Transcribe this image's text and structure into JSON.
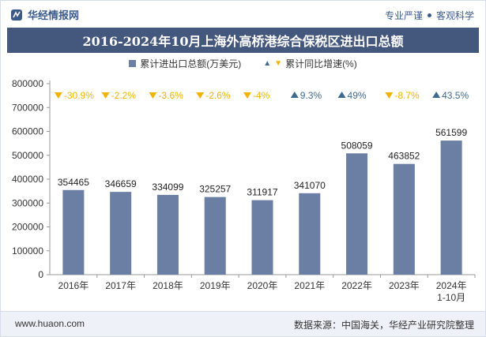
{
  "header": {
    "brand": "华经情报网",
    "tagline_left": "专业严谨",
    "tagline_right": "客观科学"
  },
  "footer": {
    "website": "www.huaon.com",
    "source": "数据来源：中国海关，华经产业研究院整理"
  },
  "colors": {
    "bar": "#6b7ea3",
    "title_bg": "#44577d",
    "up": "#3e6a8f",
    "down": "#f0b400"
  },
  "chart_data": {
    "type": "bar",
    "title": "2016-2024年10月上海外高桥港综合保税区进出口总额",
    "categories": [
      "2016年",
      "2017年",
      "2018年",
      "2019年",
      "2020年",
      "2021年",
      "2022年",
      "2023年",
      "2024年\n1-10月"
    ],
    "series": [
      {
        "name": "累计进出口总额(万美元)",
        "values": [
          354465,
          346659,
          334099,
          325257,
          311917,
          341070,
          508059,
          463852,
          561599
        ]
      },
      {
        "name": "累计同比增速(%)",
        "values": [
          -30.9,
          -2.2,
          -3.6,
          -2.6,
          -4,
          9.3,
          49,
          -8.7,
          43.5
        ],
        "labels": [
          "-30.9%",
          "-2.2%",
          "-3.6%",
          "-2.6%",
          "-4%",
          "9.3%",
          "49%",
          "-8.7%",
          "43.5%"
        ]
      }
    ],
    "ylim": [
      0,
      800000
    ],
    "yticks": [
      "0",
      "100000",
      "200000",
      "300000",
      "400000",
      "500000",
      "600000",
      "700000",
      "800000"
    ],
    "legend_position": "top-center",
    "grid": false
  }
}
